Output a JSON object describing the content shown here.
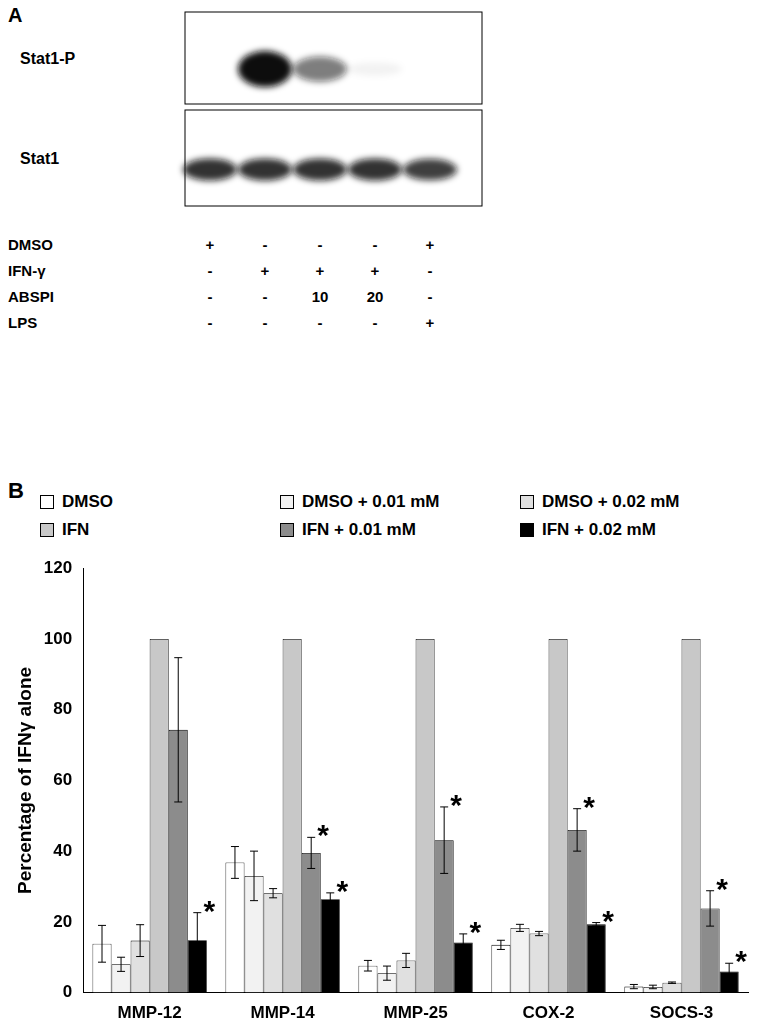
{
  "panel_a": {
    "label": "A",
    "bands": [
      {
        "name": "Stat1-P",
        "intensity": [
          0,
          1,
          0.55,
          0.05,
          0
        ]
      },
      {
        "name": "Stat1",
        "intensity": [
          0.85,
          0.85,
          0.85,
          0.85,
          0.8
        ]
      }
    ],
    "rows": [
      {
        "name": "DMSO",
        "values": [
          "+",
          "-",
          "-",
          "-",
          "+"
        ]
      },
      {
        "name": "IFN-γ",
        "values": [
          "-",
          "+",
          "+",
          "+",
          "-"
        ]
      },
      {
        "name": "ABSPI",
        "values": [
          "-",
          "-",
          "10",
          "20",
          "-"
        ]
      },
      {
        "name": "LPS",
        "values": [
          "-",
          "-",
          "-",
          "-",
          "+"
        ]
      }
    ]
  },
  "panel_b_label": "B",
  "chart_data": {
    "type": "bar",
    "y_label": "Percentage of IFNγ alone",
    "categories": [
      "MMP-12",
      "MMP-14",
      "MMP-25",
      "COX-2",
      "SOCS-3"
    ],
    "series": [
      {
        "name": "DMSO",
        "color": "#ffffff",
        "values": [
          13.8,
          36.8,
          7.6,
          13.5,
          1.7
        ],
        "errors": [
          5.2,
          4.5,
          1.5,
          1.3,
          0.6
        ],
        "significance": [
          null,
          null,
          null,
          null,
          null
        ]
      },
      {
        "name": "DMSO + 0.01 mM",
        "color": "#f2f2f2",
        "values": [
          8.0,
          33.0,
          5.5,
          18.3,
          1.6
        ],
        "errors": [
          2.0,
          7.0,
          2.0,
          1.0,
          0.5
        ],
        "significance": [
          null,
          null,
          null,
          null,
          null
        ]
      },
      {
        "name": "DMSO + 0.02 mM",
        "color": "#e0e0e0",
        "values": [
          14.7,
          28.1,
          9.1,
          16.7,
          2.8
        ],
        "errors": [
          4.5,
          1.3,
          2.0,
          0.6,
          0.2
        ],
        "significance": [
          null,
          null,
          null,
          null,
          null
        ]
      },
      {
        "name": "IFN",
        "color": "#c8c8c8",
        "values": [
          100,
          100,
          100,
          100,
          100
        ],
        "errors": [
          null,
          null,
          null,
          null,
          null
        ],
        "significance": [
          null,
          null,
          null,
          null,
          null
        ]
      },
      {
        "name": "IFN + 0.01 mM",
        "color": "#8c8c8c",
        "values": [
          74.3,
          39.5,
          43.1,
          46.0,
          23.8
        ],
        "errors": [
          20.4,
          4.4,
          9.4,
          6.0,
          5.0
        ],
        "significance": [
          null,
          "*",
          "*",
          "*",
          "*"
        ]
      },
      {
        "name": "IFN + 0.02 mM",
        "color": "#000000",
        "values": [
          14.8,
          26.4,
          14.2,
          19.3,
          6.0
        ],
        "errors": [
          7.8,
          1.8,
          2.4,
          0.5,
          2.3
        ],
        "significance": [
          "*",
          "*",
          "*",
          "*",
          "*"
        ]
      }
    ],
    "ylim": [
      0,
      120
    ],
    "yticks": [
      0,
      20,
      40,
      60,
      80,
      100,
      120
    ],
    "grid": false
  }
}
